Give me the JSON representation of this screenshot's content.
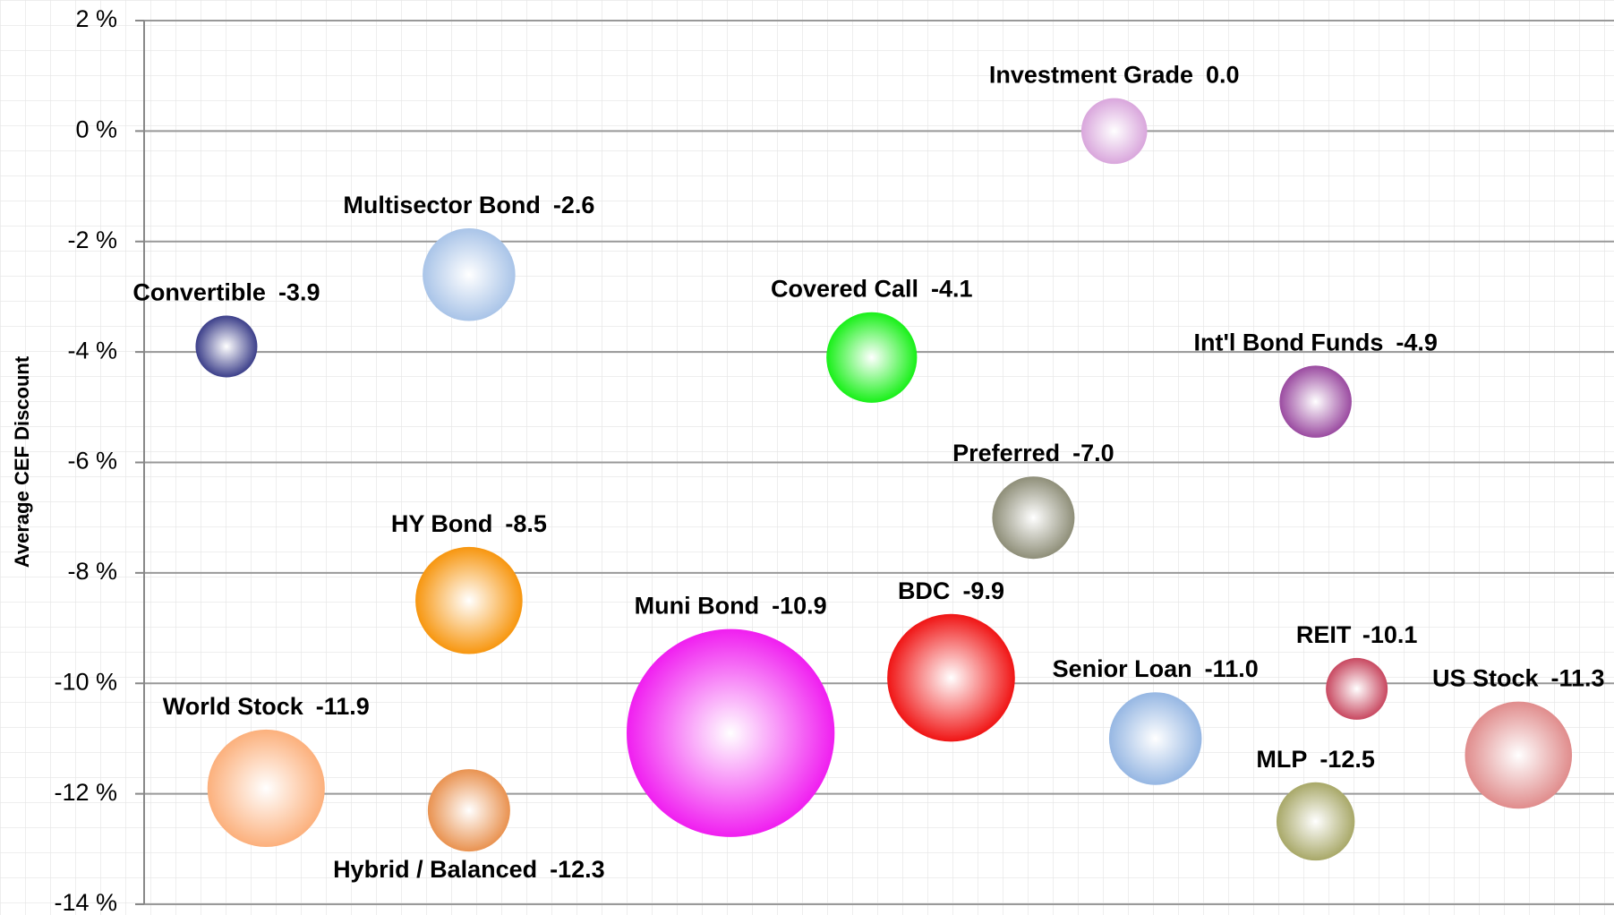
{
  "chart_data": {
    "type": "bubble",
    "y_label": "Average CEF Discount",
    "ylim": [
      -14,
      2
    ],
    "yticks": [
      {
        "value": 2,
        "label": "2 %"
      },
      {
        "value": 0,
        "label": "0 %"
      },
      {
        "value": -2,
        "label": "-2 %"
      },
      {
        "value": -4,
        "label": "-4 %"
      },
      {
        "value": -6,
        "label": "-6 %"
      },
      {
        "value": -8,
        "label": "-8 %"
      },
      {
        "value": -10,
        "label": "-10 %"
      },
      {
        "value": -12,
        "label": "-12 %"
      },
      {
        "value": -14,
        "label": "-14 %"
      }
    ],
    "xlim": [
      0,
      100
    ],
    "grid": true,
    "names": [
      "Investment Grade",
      "Multisector Bond",
      "Convertible",
      "Covered Call",
      "Int'l Bond Funds",
      "Preferred",
      "HY Bond",
      "Muni Bond",
      "BDC",
      "Senior Loan",
      "REIT",
      "US Stock",
      "World Stock",
      "Hybrid / Balanced",
      "MLP"
    ],
    "x": [
      66.0,
      22.1,
      5.6,
      49.5,
      79.7,
      60.5,
      22.1,
      39.9,
      54.9,
      68.8,
      82.5,
      93.5,
      8.3,
      22.1,
      79.7
    ],
    "values": [
      0.0,
      -2.6,
      -3.9,
      -4.1,
      -4.9,
      -7.0,
      -8.5,
      -10.9,
      -9.9,
      -11.0,
      -10.1,
      -11.3,
      -11.9,
      -12.3,
      -12.5
    ],
    "value_labels": [
      "0.0",
      "-2.6",
      "-3.9",
      "-4.1",
      "-4.9",
      "-7.0",
      "-8.5",
      "-10.9",
      "-9.9",
      "-11.0",
      "-10.1",
      "-11.3",
      "-11.9",
      "-12.3",
      "-12.5"
    ],
    "sizes": [
      32,
      45,
      30,
      44,
      35,
      40,
      52,
      101,
      62,
      45,
      30,
      52,
      57,
      40,
      38
    ],
    "colors": [
      "#d9a6dc",
      "#a9c4e8",
      "#3c3f8a",
      "#18f018",
      "#9a4aa0",
      "#8e8e78",
      "#f7960f",
      "#f01ef0",
      "#f01414",
      "#96b7e3",
      "#c84860",
      "#e08c8c",
      "#fcb07c",
      "#e99250",
      "#a8a868"
    ]
  }
}
